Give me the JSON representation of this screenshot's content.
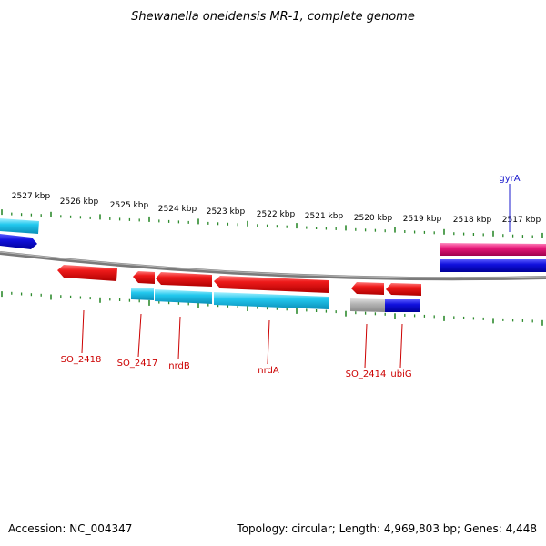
{
  "title": "Shewanella oneidensis MR-1, complete genome",
  "footer": {
    "accession": "Accession: NC_004347",
    "summary": "Topology: circular; Length: 4,969,803 bp; Genes: 4,448"
  },
  "colors": {
    "tick": "#2e8b2e",
    "backbone": "#808080",
    "label_red": "#cc0000",
    "label_blue": "#1a1acc",
    "gene_red": "#ee1a1a",
    "gene_cyan": "#22c8ee",
    "gene_blue": "#1111dd",
    "gene_magenta": "#e8197a",
    "gene_gray": "#b4b4b4"
  },
  "position_labels": [
    "2527 kbp",
    "2526 kbp",
    "2525 kbp",
    "2524 kbp",
    "2523 kbp",
    "2522 kbp",
    "2521 kbp",
    "2520 kbp",
    "2519 kbp",
    "2518 kbp",
    "2517 kbp"
  ],
  "gene_labels": [
    {
      "text": "SO_2418",
      "color": "red"
    },
    {
      "text": "SO_2417",
      "color": "red"
    },
    {
      "text": "nrdB",
      "color": "red"
    },
    {
      "text": "nrdA",
      "color": "red"
    },
    {
      "text": "SO_2414",
      "color": "red"
    },
    {
      "text": "ubiG",
      "color": "red"
    },
    {
      "text": "gyrA",
      "color": "blue"
    }
  ],
  "features": [
    {
      "id": "cyan-left-top",
      "type": "cyan",
      "strand": "forward"
    },
    {
      "id": "blue-left-top",
      "type": "blue",
      "strand": "forward"
    },
    {
      "id": "magenta-right-top",
      "type": "magenta",
      "strand": "forward"
    },
    {
      "id": "blue-right-top",
      "type": "blue",
      "strand": "forward"
    },
    {
      "id": "SO_2418",
      "type": "red",
      "strand": "reverse"
    },
    {
      "id": "SO_2417",
      "type": "red",
      "strand": "reverse"
    },
    {
      "id": "nrdB",
      "type": "red",
      "strand": "reverse"
    },
    {
      "id": "nrdA",
      "type": "red",
      "strand": "reverse"
    },
    {
      "id": "SO_2414",
      "type": "red",
      "strand": "reverse"
    },
    {
      "id": "ubiG",
      "type": "red",
      "strand": "reverse"
    },
    {
      "id": "cyan-SO_2417",
      "type": "cyan",
      "strand": "reverse"
    },
    {
      "id": "cyan-nrdB",
      "type": "cyan",
      "strand": "reverse"
    },
    {
      "id": "cyan-nrdA",
      "type": "cyan",
      "strand": "reverse"
    },
    {
      "id": "gray-SO_2414",
      "type": "gray",
      "strand": "reverse"
    },
    {
      "id": "blue-ubiG",
      "type": "blue",
      "strand": "reverse"
    }
  ]
}
